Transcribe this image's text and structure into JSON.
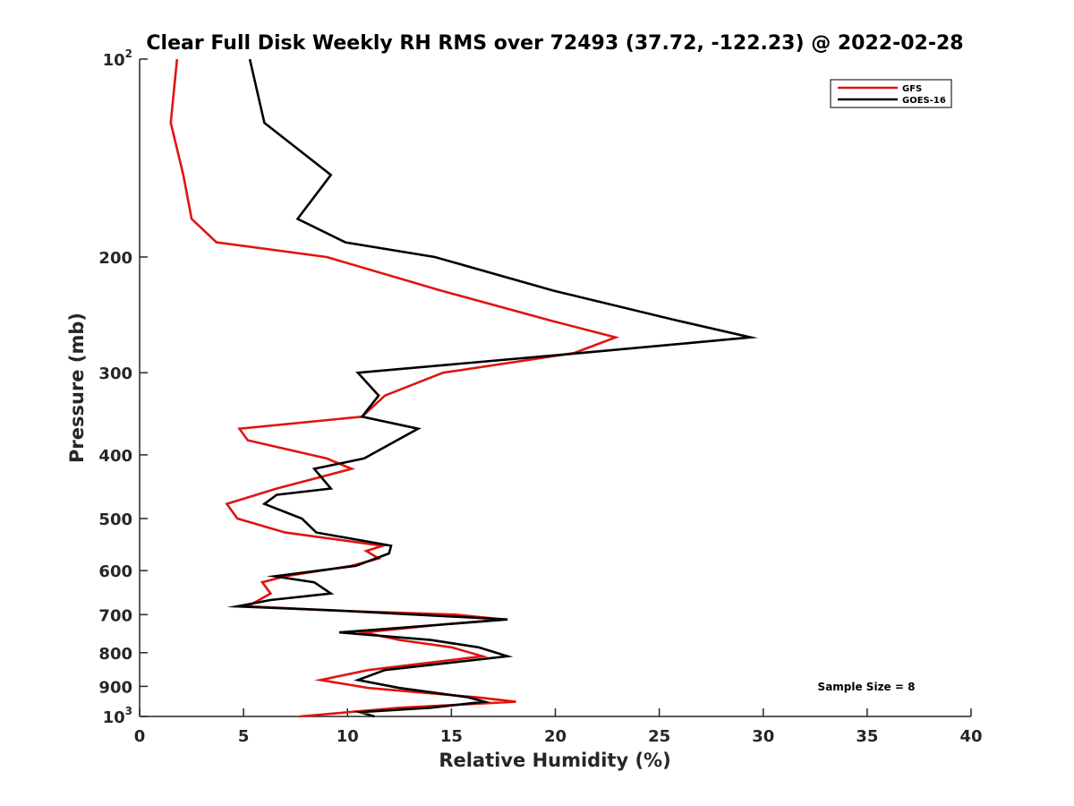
{
  "chart_data": {
    "type": "line",
    "title": "Clear Full Disk Weekly RH RMS over 72493 (37.72, -122.23) @ 2022-02-28",
    "xlabel": "Relative Humidity (%)",
    "ylabel": "Pressure (mb)",
    "xlim": [
      0,
      40
    ],
    "ylim": [
      100,
      1000
    ],
    "y_scale": "log",
    "y_reversed": true,
    "x_ticks": [
      {
        "value": 0,
        "label": "0"
      },
      {
        "value": 5,
        "label": "5"
      },
      {
        "value": 10,
        "label": "10"
      },
      {
        "value": 15,
        "label": "15"
      },
      {
        "value": 20,
        "label": "20"
      },
      {
        "value": 25,
        "label": "25"
      },
      {
        "value": 30,
        "label": "30"
      },
      {
        "value": 35,
        "label": "35"
      },
      {
        "value": 40,
        "label": "40"
      }
    ],
    "y_ticks": [
      {
        "value": 100,
        "label": "10",
        "sup": "2"
      },
      {
        "value": 200,
        "label": "200",
        "sup": ""
      },
      {
        "value": 300,
        "label": "300",
        "sup": ""
      },
      {
        "value": 400,
        "label": "400",
        "sup": ""
      },
      {
        "value": 500,
        "label": "500",
        "sup": ""
      },
      {
        "value": 600,
        "label": "600",
        "sup": ""
      },
      {
        "value": 700,
        "label": "700",
        "sup": ""
      },
      {
        "value": 800,
        "label": "800",
        "sup": ""
      },
      {
        "value": 900,
        "label": "900",
        "sup": ""
      },
      {
        "value": 1000,
        "label": "10",
        "sup": "3"
      }
    ],
    "grid": false,
    "legend_position": "top-right",
    "annotation": "Sample Size = 8",
    "series": [
      {
        "name": "GFS",
        "color": "#e0140f",
        "points": [
          [
            1.8,
            100
          ],
          [
            1.5,
            125
          ],
          [
            2.1,
            150
          ],
          [
            2.5,
            175
          ],
          [
            3.7,
            190
          ],
          [
            9.0,
            200
          ],
          [
            14.5,
            225
          ],
          [
            19.8,
            250
          ],
          [
            22.9,
            265
          ],
          [
            20.9,
            280
          ],
          [
            14.6,
            300
          ],
          [
            11.8,
            325
          ],
          [
            10.7,
            350
          ],
          [
            4.8,
            365
          ],
          [
            5.2,
            380
          ],
          [
            9.0,
            405
          ],
          [
            10.2,
            420
          ],
          [
            6.6,
            450
          ],
          [
            4.2,
            475
          ],
          [
            4.7,
            500
          ],
          [
            7.0,
            525
          ],
          [
            11.7,
            550
          ],
          [
            10.9,
            560
          ],
          [
            11.5,
            575
          ],
          [
            10.2,
            590
          ],
          [
            7.0,
            612
          ],
          [
            5.9,
            625
          ],
          [
            6.3,
            650
          ],
          [
            5.2,
            680
          ],
          [
            9.3,
            690
          ],
          [
            15.2,
            700
          ],
          [
            17.5,
            712
          ],
          [
            14.5,
            725
          ],
          [
            10.8,
            745
          ],
          [
            12.5,
            765
          ],
          [
            15.0,
            785
          ],
          [
            16.5,
            810
          ],
          [
            11.0,
            850
          ],
          [
            8.7,
            880
          ],
          [
            11.0,
            905
          ],
          [
            16.2,
            935
          ],
          [
            18.1,
            950
          ],
          [
            12.5,
            970
          ],
          [
            7.7,
            1000
          ]
        ]
      },
      {
        "name": "GOES-16",
        "color": "#000000",
        "points": [
          [
            5.3,
            100
          ],
          [
            6.0,
            125
          ],
          [
            9.2,
            150
          ],
          [
            7.6,
            175
          ],
          [
            9.9,
            190
          ],
          [
            14.2,
            200
          ],
          [
            19.9,
            225
          ],
          [
            25.9,
            250
          ],
          [
            29.4,
            265
          ],
          [
            21.2,
            280
          ],
          [
            10.5,
            300
          ],
          [
            11.5,
            325
          ],
          [
            10.7,
            350
          ],
          [
            13.4,
            365
          ],
          [
            10.8,
            405
          ],
          [
            8.4,
            420
          ],
          [
            9.2,
            450
          ],
          [
            6.6,
            460
          ],
          [
            6.0,
            475
          ],
          [
            7.8,
            500
          ],
          [
            8.5,
            525
          ],
          [
            12.1,
            550
          ],
          [
            12.0,
            565
          ],
          [
            10.4,
            590
          ],
          [
            6.5,
            612
          ],
          [
            8.4,
            625
          ],
          [
            9.2,
            650
          ],
          [
            6.3,
            665
          ],
          [
            4.7,
            680
          ],
          [
            9.5,
            690
          ],
          [
            17.7,
            712
          ],
          [
            14.5,
            725
          ],
          [
            9.6,
            745
          ],
          [
            14.0,
            765
          ],
          [
            16.3,
            785
          ],
          [
            17.7,
            810
          ],
          [
            11.8,
            850
          ],
          [
            10.5,
            880
          ],
          [
            12.5,
            905
          ],
          [
            15.8,
            935
          ],
          [
            16.6,
            950
          ],
          [
            14.0,
            970
          ],
          [
            10.6,
            985
          ],
          [
            11.3,
            1000
          ]
        ]
      }
    ]
  }
}
